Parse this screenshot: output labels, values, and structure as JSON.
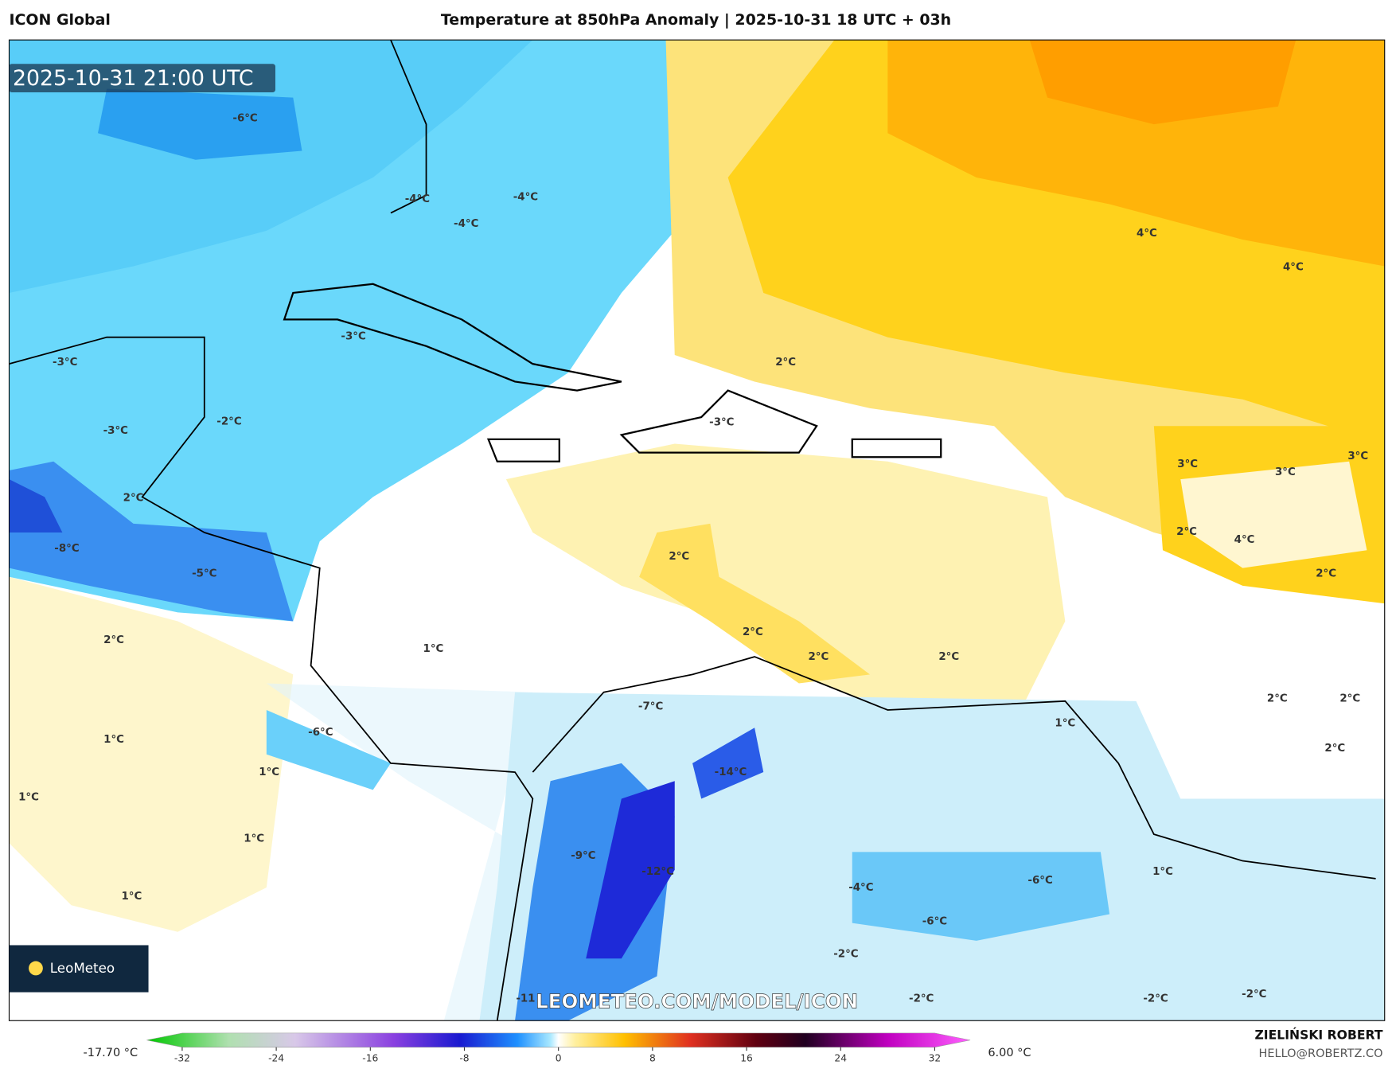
{
  "header": {
    "model": "ICON Global",
    "title": "Temperature at 850hPa Anomaly | 2025-10-31 18 UTC + 03h"
  },
  "map": {
    "timestamp": "2025-10-31 21:00 UTC",
    "watermark": "LEOMETEO.COM/MODEL/ICON",
    "logo": "LeoMeteo",
    "labels": [
      "-6°C",
      "-4°C",
      "-4°C",
      "-4°C",
      "4°C",
      "4°C",
      "-3°C",
      "-3°C",
      "2°C",
      "-2°C",
      "-3°C",
      "-3°C",
      "3°C",
      "3°C",
      "3°C",
      "2°C",
      "-8°C",
      "-5°C",
      "2°C",
      "2°C",
      "4°C",
      "2°C",
      "2°C",
      "1°C",
      "2°C",
      "2°C",
      "2°C",
      "-7°C",
      "2°C",
      "2°C",
      "1°C",
      "-6°C",
      "1°C",
      "2°C",
      "-14°C",
      "1°C",
      "1°C",
      "1°C",
      "-9°C",
      "-12°C",
      "1°C",
      "-6°C",
      "-4°C",
      "1°C",
      "-6°C",
      "-2°C",
      "-11",
      "-2°C",
      "-2°C",
      "-2°C"
    ]
  },
  "colorbar": {
    "min_label": "-17.70 °C",
    "max_label": "6.00 °C",
    "lim": [
      -32,
      32
    ],
    "ticks": [
      -32,
      -24,
      -16,
      -8,
      0,
      8,
      16,
      24,
      32
    ]
  },
  "footer": {
    "author": "ZIELIŃSKI ROBERT",
    "email": "HELLO@ROBERTZ.CO"
  }
}
